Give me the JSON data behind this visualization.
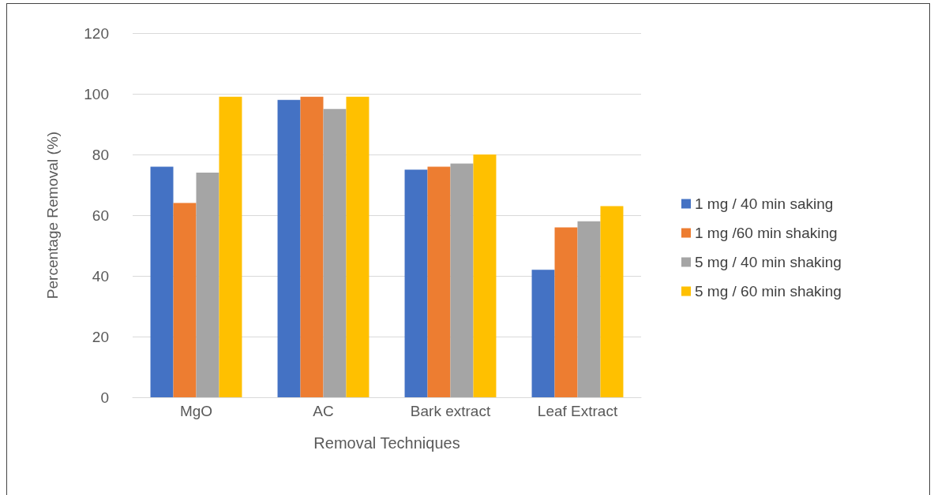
{
  "chart_data": {
    "type": "bar",
    "xlabel": "Removal Techniques",
    "ylabel": "Percentage Removal (%)",
    "categories": [
      "MgO",
      "AC",
      "Bark extract",
      "Leaf Extract"
    ],
    "series": [
      {
        "name": "1 mg / 40 min saking",
        "color": "#4472c4",
        "values": [
          76,
          98,
          75,
          42
        ]
      },
      {
        "name": "1 mg /60 min shaking",
        "color": "#ed7d31",
        "values": [
          64,
          99,
          76,
          56
        ]
      },
      {
        "name": "5 mg / 40 min shaking",
        "color": "#a5a5a5",
        "values": [
          74,
          95,
          77,
          58
        ]
      },
      {
        "name": "5 mg / 60 min shaking",
        "color": "#ffc000",
        "values": [
          99,
          99,
          80,
          63
        ]
      }
    ],
    "ylim": [
      0,
      120
    ],
    "yticks": [
      0,
      20,
      40,
      60,
      80,
      100,
      120
    ],
    "grid": "y",
    "legend": "right"
  }
}
